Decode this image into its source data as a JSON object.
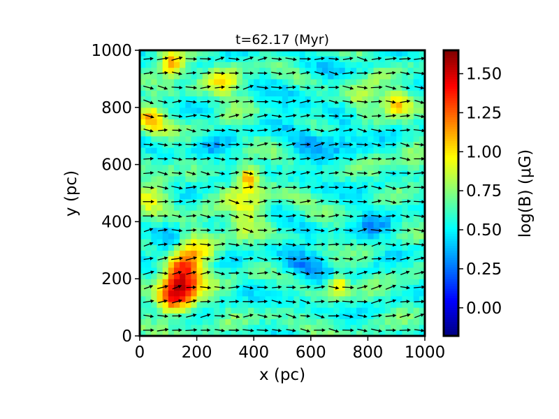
{
  "chart_data": {
    "type": "heatmap",
    "title": "t=62.17 (Myr)",
    "xlabel": "x (pc)",
    "ylabel": "y (pc)",
    "xlim": [
      0,
      1000
    ],
    "ylim": [
      0,
      1000
    ],
    "x_ticks": [
      "0",
      "200",
      "400",
      "600",
      "800",
      "1000"
    ],
    "y_ticks": [
      "0",
      "200",
      "400",
      "600",
      "800",
      "1000"
    ],
    "colorbar": {
      "label": "log(B) (μG)",
      "range": [
        -0.18,
        1.65
      ],
      "ticks": [
        "0.00",
        "0.25",
        "0.50",
        "0.75",
        "1.00",
        "1.25",
        "1.50"
      ],
      "colormap": "jet"
    },
    "background_level": 0.6,
    "regions": [
      {
        "x": 150,
        "y": 210,
        "level": 1.45,
        "extent": 70
      },
      {
        "x": 120,
        "y": 130,
        "level": 1.2,
        "extent": 60
      },
      {
        "x": 110,
        "y": 950,
        "level": 1.25,
        "extent": 45
      },
      {
        "x": 380,
        "y": 560,
        "level": 1.2,
        "extent": 40
      },
      {
        "x": 380,
        "y": 450,
        "level": 0.95,
        "extent": 70
      },
      {
        "x": 40,
        "y": 760,
        "level": 1.05,
        "extent": 50
      },
      {
        "x": 700,
        "y": 180,
        "level": 1.1,
        "extent": 35
      },
      {
        "x": 900,
        "y": 820,
        "level": 1.0,
        "extent": 45
      },
      {
        "x": 780,
        "y": 820,
        "level": 0.95,
        "extent": 60
      },
      {
        "x": 200,
        "y": 330,
        "level": 0.95,
        "extent": 70
      },
      {
        "x": 100,
        "y": 330,
        "level": 0.3,
        "extent": 60
      },
      {
        "x": 720,
        "y": 720,
        "level": 0.35,
        "extent": 70
      },
      {
        "x": 560,
        "y": 250,
        "level": 0.4,
        "extent": 90
      },
      {
        "x": 820,
        "y": 400,
        "level": 0.45,
        "extent": 90
      },
      {
        "x": 600,
        "y": 630,
        "level": 0.45,
        "extent": 80
      },
      {
        "x": 250,
        "y": 640,
        "level": 0.45,
        "extent": 70
      },
      {
        "x": 50,
        "y": 500,
        "level": 0.9,
        "extent": 60
      },
      {
        "x": 620,
        "y": 880,
        "level": 0.5,
        "extent": 90
      },
      {
        "x": 480,
        "y": 780,
        "level": 0.5,
        "extent": 80
      },
      {
        "x": 960,
        "y": 600,
        "level": 0.8,
        "extent": 50
      },
      {
        "x": 300,
        "y": 880,
        "level": 0.9,
        "extent": 60
      }
    ],
    "vectors": {
      "x_positions": [
        30,
        80,
        130,
        180,
        230,
        280,
        330,
        380,
        430,
        480,
        530,
        580,
        630,
        680,
        730,
        780,
        830,
        880,
        930,
        980
      ],
      "y_positions": [
        20,
        70,
        120,
        170,
        220,
        270,
        320,
        370,
        420,
        470,
        520,
        570,
        620,
        670,
        720,
        770,
        820,
        870,
        920,
        970
      ],
      "dominant_direction": "+x"
    }
  }
}
